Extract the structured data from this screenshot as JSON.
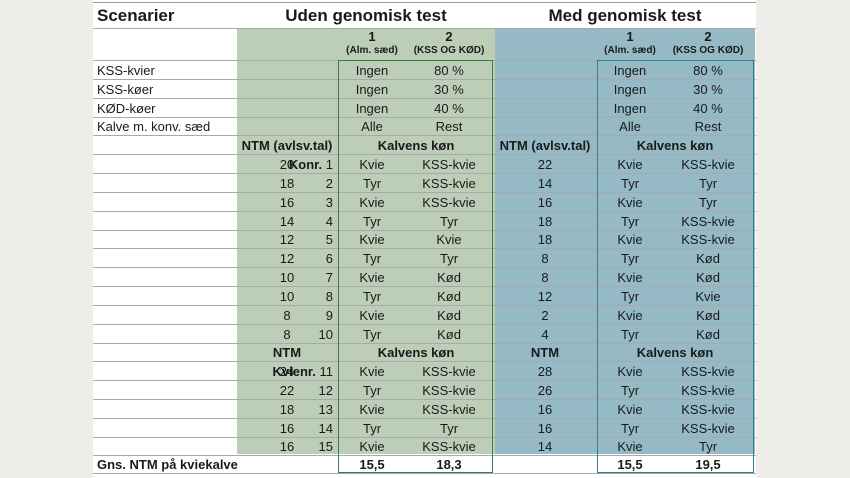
{
  "title": {
    "scenarios": "Scenarier",
    "without_test": "Uden genomisk test",
    "with_test": "Med genomisk test"
  },
  "colors": {
    "green_bg": "#bccdb8",
    "blue_bg": "#95b9c5",
    "green_border": "#3f7a4e",
    "blue_border": "#2f7f8e",
    "page_bg": "#efede9"
  },
  "scenario_headers": {
    "s1_num": "1",
    "s1_sub": "(Alm. sæd)",
    "s2_num": "2",
    "s2_sub": "(KSS OG KØD)"
  },
  "settings": [
    {
      "label": "KSS-kvier",
      "without": [
        "Ingen",
        "80 %"
      ],
      "with": [
        "Ingen",
        "80 %"
      ]
    },
    {
      "label": "KSS-køer",
      "without": [
        "Ingen",
        "30 %"
      ],
      "with": [
        "Ingen",
        "30 %"
      ]
    },
    {
      "label": "KØD-køer",
      "without": [
        "Ingen",
        "40 %"
      ],
      "with": [
        "Ingen",
        "40 %"
      ]
    },
    {
      "label": "Kalve m. konv. sæd",
      "without": [
        "Alle",
        "Rest"
      ],
      "with": [
        "Alle",
        "Rest"
      ]
    }
  ],
  "cow_section": {
    "ntm_header": "NTM (avlsv.tal)",
    "sex_header": "Kalvens køn",
    "first_label": "Konr.",
    "rows": [
      {
        "nr": "1",
        "ntm_without": "20",
        "without": [
          "Kvie",
          "KSS-kvie"
        ],
        "ntm_with": "22",
        "with": [
          "Kvie",
          "KSS-kvie"
        ]
      },
      {
        "nr": "2",
        "ntm_without": "18",
        "without": [
          "Tyr",
          "KSS-kvie"
        ],
        "ntm_with": "14",
        "with": [
          "Tyr",
          "Tyr"
        ]
      },
      {
        "nr": "3",
        "ntm_without": "16",
        "without": [
          "Kvie",
          "KSS-kvie"
        ],
        "ntm_with": "16",
        "with": [
          "Kvie",
          "Tyr"
        ]
      },
      {
        "nr": "4",
        "ntm_without": "14",
        "without": [
          "Tyr",
          "Tyr"
        ],
        "ntm_with": "18",
        "with": [
          "Tyr",
          "KSS-kvie"
        ]
      },
      {
        "nr": "5",
        "ntm_without": "12",
        "without": [
          "Kvie",
          "Kvie"
        ],
        "ntm_with": "18",
        "with": [
          "Kvie",
          "KSS-kvie"
        ]
      },
      {
        "nr": "6",
        "ntm_without": "12",
        "without": [
          "Tyr",
          "Tyr"
        ],
        "ntm_with": "8",
        "with": [
          "Tyr",
          "Kød"
        ]
      },
      {
        "nr": "7",
        "ntm_without": "10",
        "without": [
          "Kvie",
          "Kød"
        ],
        "ntm_with": "8",
        "with": [
          "Kvie",
          "Kød"
        ]
      },
      {
        "nr": "8",
        "ntm_without": "10",
        "without": [
          "Tyr",
          "Kød"
        ],
        "ntm_with": "12",
        "with": [
          "Tyr",
          "Kvie"
        ]
      },
      {
        "nr": "9",
        "ntm_without": "8",
        "without": [
          "Kvie",
          "Kød"
        ],
        "ntm_with": "2",
        "with": [
          "Kvie",
          "Kød"
        ]
      },
      {
        "nr": "10",
        "ntm_without": "8",
        "without": [
          "Tyr",
          "Kød"
        ],
        "ntm_with": "4",
        "with": [
          "Tyr",
          "Kød"
        ]
      }
    ]
  },
  "heifer_section": {
    "ntm_header": "NTM",
    "sex_header": "Kalvens køn",
    "first_label": "Kvienr.",
    "rows": [
      {
        "nr": "11",
        "ntm_without": "24",
        "without": [
          "Kvie",
          "KSS-kvie"
        ],
        "ntm_with": "28",
        "with": [
          "Kvie",
          "KSS-kvie"
        ]
      },
      {
        "nr": "12",
        "ntm_without": "22",
        "without": [
          "Tyr",
          "KSS-kvie"
        ],
        "ntm_with": "26",
        "with": [
          "Tyr",
          "KSS-kvie"
        ]
      },
      {
        "nr": "13",
        "ntm_without": "18",
        "without": [
          "Kvie",
          "KSS-kvie"
        ],
        "ntm_with": "16",
        "with": [
          "Kvie",
          "KSS-kvie"
        ]
      },
      {
        "nr": "14",
        "ntm_without": "16",
        "without": [
          "Tyr",
          "Tyr"
        ],
        "ntm_with": "16",
        "with": [
          "Tyr",
          "KSS-kvie"
        ]
      },
      {
        "nr": "15",
        "ntm_without": "16",
        "without": [
          "Kvie",
          "KSS-kvie"
        ],
        "ntm_with": "14",
        "with": [
          "Kvie",
          "Tyr"
        ]
      }
    ]
  },
  "summary": {
    "label": "Gns. NTM på kviekalve",
    "without": [
      "15,5",
      "18,3"
    ],
    "with": [
      "15,5",
      "19,5"
    ]
  }
}
